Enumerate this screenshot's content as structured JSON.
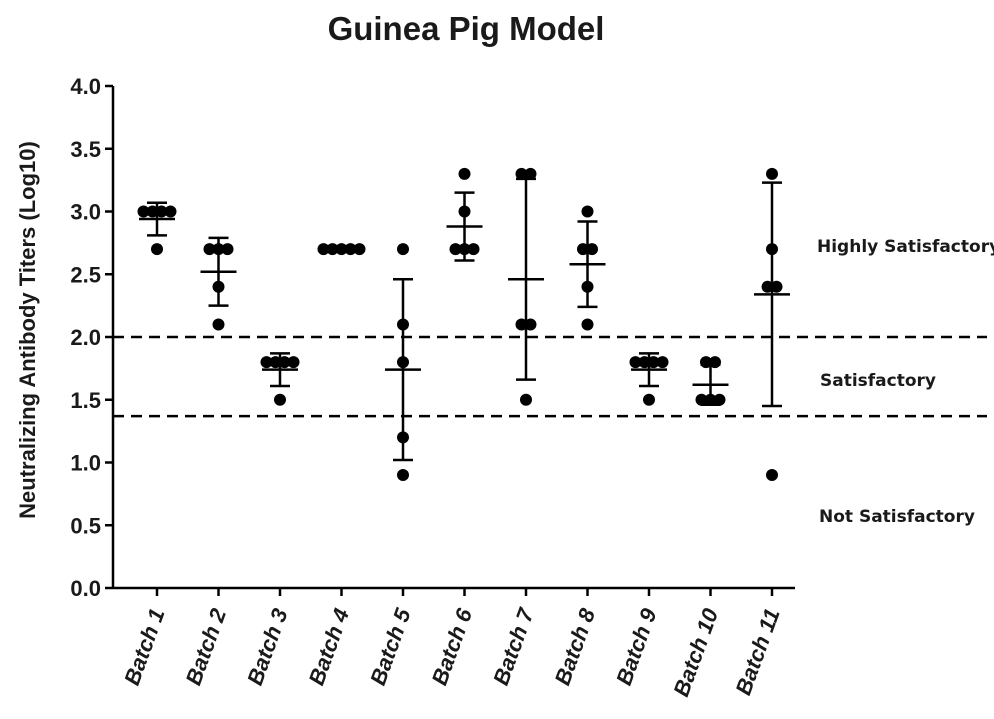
{
  "chart_data": {
    "type": "scatter",
    "title": "Guinea Pig Model",
    "ylabel": "Neutralizing Antibody Titers (Log10)",
    "xlabel": "",
    "ylim": [
      0,
      4.0
    ],
    "yticks": [
      "0.0",
      "0.5",
      "1.0",
      "1.5",
      "2.0",
      "2.5",
      "3.0",
      "3.5",
      "4.0"
    ],
    "grid": false,
    "categories": [
      "Batch 1",
      "Batch 2",
      "Batch 3",
      "Batch 4",
      "Batch 5",
      "Batch 6",
      "Batch 7",
      "Batch 8",
      "Batch 9",
      "Batch 10",
      "Batch 11"
    ],
    "series": [
      {
        "points": [
          [
            3.0,
            3.0,
            3.0,
            3.0,
            2.7
          ],
          [
            2.7,
            2.7,
            2.4,
            2.1,
            2.7
          ],
          [
            1.8,
            1.8,
            1.8,
            1.8,
            1.5
          ],
          [
            2.7,
            2.7,
            2.7,
            2.7,
            2.7
          ],
          [
            2.7,
            2.1,
            1.8,
            1.2,
            0.9
          ],
          [
            3.3,
            3.0,
            2.7,
            2.7,
            2.7
          ],
          [
            3.3,
            3.3,
            2.1,
            2.1,
            1.5
          ],
          [
            3.0,
            2.7,
            2.7,
            2.4,
            2.1
          ],
          [
            1.8,
            1.8,
            1.8,
            1.8,
            1.5
          ],
          [
            1.8,
            1.8,
            1.5,
            1.5,
            1.5
          ],
          [
            3.3,
            2.7,
            2.4,
            2.4,
            0.9
          ]
        ],
        "mean": [
          2.94,
          2.52,
          1.74,
          2.7,
          1.74,
          2.88,
          2.46,
          2.58,
          1.74,
          1.62,
          2.34
        ],
        "sd": [
          0.13,
          0.27,
          0.13,
          0.0,
          0.72,
          0.27,
          0.8,
          0.34,
          0.13,
          0.16,
          0.89
        ]
      }
    ],
    "reference_lines": [
      2.0,
      1.37
    ],
    "annotations": [
      "Highly Satisfactory",
      "Satisfactory",
      "Not Satisfactory"
    ]
  }
}
